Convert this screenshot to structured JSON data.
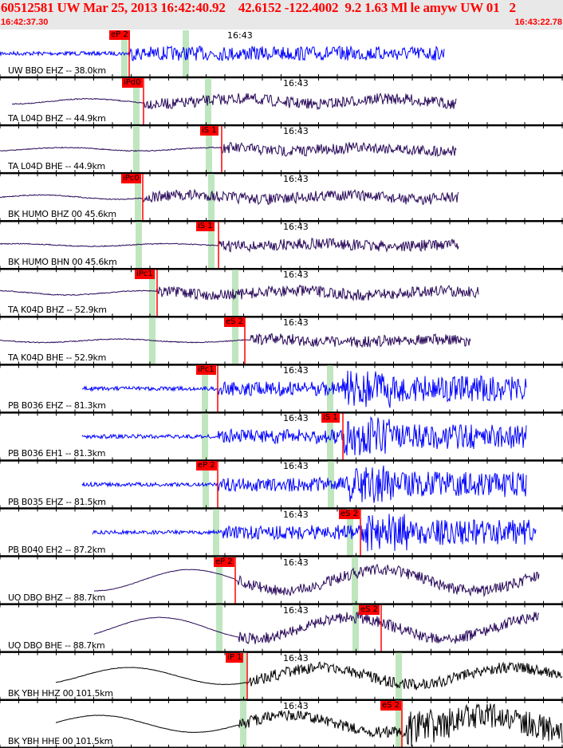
{
  "header": {
    "title": "60512581 UW Mar 25, 2013 16:42:40.92    42.6152 -122.4002  9.2 1.63 Ml le amyw UW 01   2",
    "start_time": "16:42:37.30",
    "end_time": "16:43:22.78"
  },
  "colors": {
    "header_text": "#ff0000",
    "pick": "#ff0000",
    "predicted": "#bfe6bf",
    "blue_trace": "#0000ff",
    "purple_trace": "#2a0a5a",
    "black_trace": "#000000"
  },
  "tick_label": "16:43",
  "rows": [
    {
      "station": "UW BBO EHZ -- 38.0km",
      "phase": "eP 2"
    },
    {
      "station": "TA L04D BHZ -- 44.9km",
      "phase": "iPd0"
    },
    {
      "station": "TA L04D BHE -- 44.9km",
      "phase": "iS 1"
    },
    {
      "station": "BK HUMO BHZ 00 45.6km",
      "phase": "iPc0"
    },
    {
      "station": "BK HUMO BHN 00 45.6km",
      "phase": "iS 1"
    },
    {
      "station": "TA K04D BHZ -- 52.9km",
      "phase": "iPc1"
    },
    {
      "station": "TA K04D BHE -- 52.9km",
      "phase": "eS 2"
    },
    {
      "station": "PB B036 EHZ -- 81.3km",
      "phase": "iPc1"
    },
    {
      "station": "PB B036 EH1 -- 81.3km",
      "phase": "iS 1"
    },
    {
      "station": "PB B035 EHZ -- 81.5km",
      "phase": "eP 2"
    },
    {
      "station": "PB B040 EH2 -- 87.2km",
      "phase": "eS 2"
    },
    {
      "station": "UO DBO BHZ -- 88.7km",
      "phase": "eP 2"
    },
    {
      "station": "UO DBO BHE -- 88.7km",
      "phase": "eS 2"
    },
    {
      "station": "BK YBH HHZ 00 101.5km",
      "phase": "iP 1"
    },
    {
      "station": "BK YBH HHE 00 101.5km",
      "phase": "eS 2"
    }
  ]
}
